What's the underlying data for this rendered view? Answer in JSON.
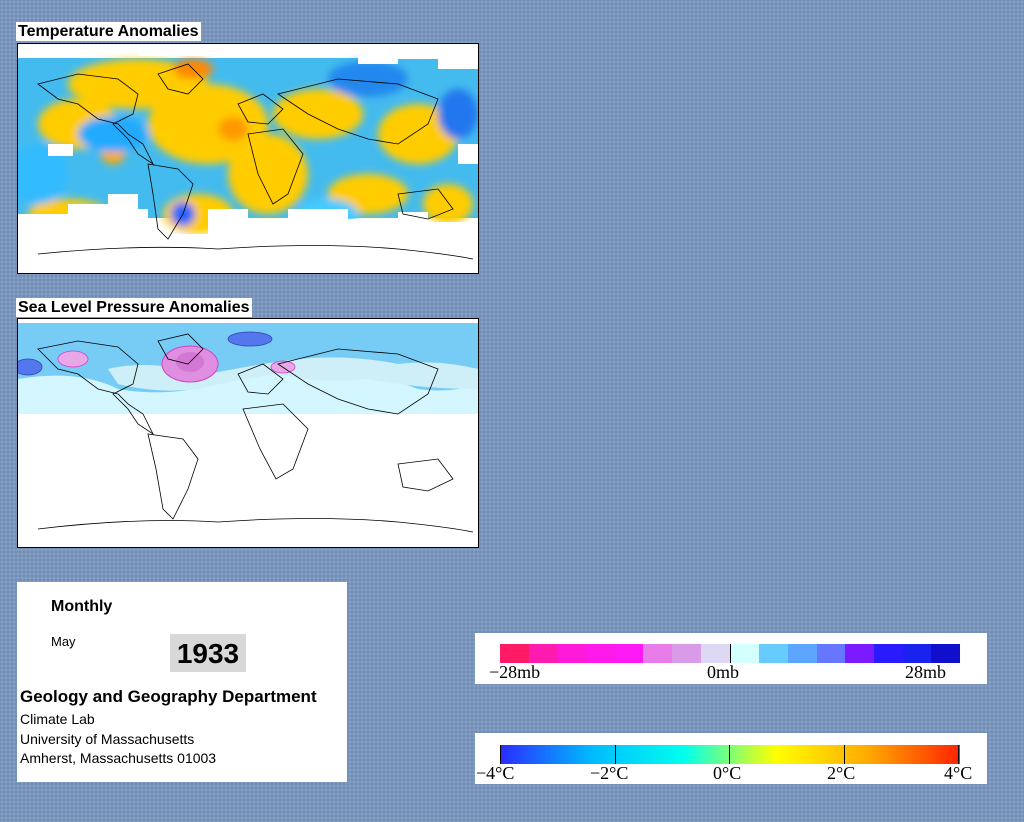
{
  "panels": {
    "temperature_title": "Temperature Anomalies",
    "pressure_title": "Sea Level Pressure Anomalies"
  },
  "info": {
    "frequency": "Monthly",
    "month": "May",
    "year": "1933",
    "department": "Geology and Geography Department",
    "lab": "Climate Lab",
    "university": "University of Massachusetts",
    "address": "Amherst, Massachusetts 01003"
  },
  "pressure_legend": {
    "colors": [
      "#ff1a66",
      "#ff1ab0",
      "#ff1ad9",
      "#ff1aeb",
      "#ff1af5",
      "#e87ce8",
      "#d99be8",
      "#ddd9f5",
      "#d4ffff",
      "#66ccff",
      "#5ca6ff",
      "#6677ff",
      "#7b1aff",
      "#2a1aff",
      "#1a22ee",
      "#0f0fcc"
    ],
    "labels": [
      "−28mb",
      "0mb",
      "28mb"
    ]
  },
  "temperature_legend": {
    "stops": [
      "#2b2bff",
      "#00bbff",
      "#00ffee",
      "#ffff00",
      "#ffaa00",
      "#ff2200"
    ],
    "labels": [
      "−4°C",
      "−2°C",
      "0°C",
      "2°C",
      "4°C"
    ]
  },
  "colors": {
    "background": "#7b97bd",
    "warm_anomaly": "#ffcc00",
    "cool_anomaly": "#33aaff",
    "high_pressure": "#7ad8ff",
    "low_pressure": "#ff66ff"
  }
}
